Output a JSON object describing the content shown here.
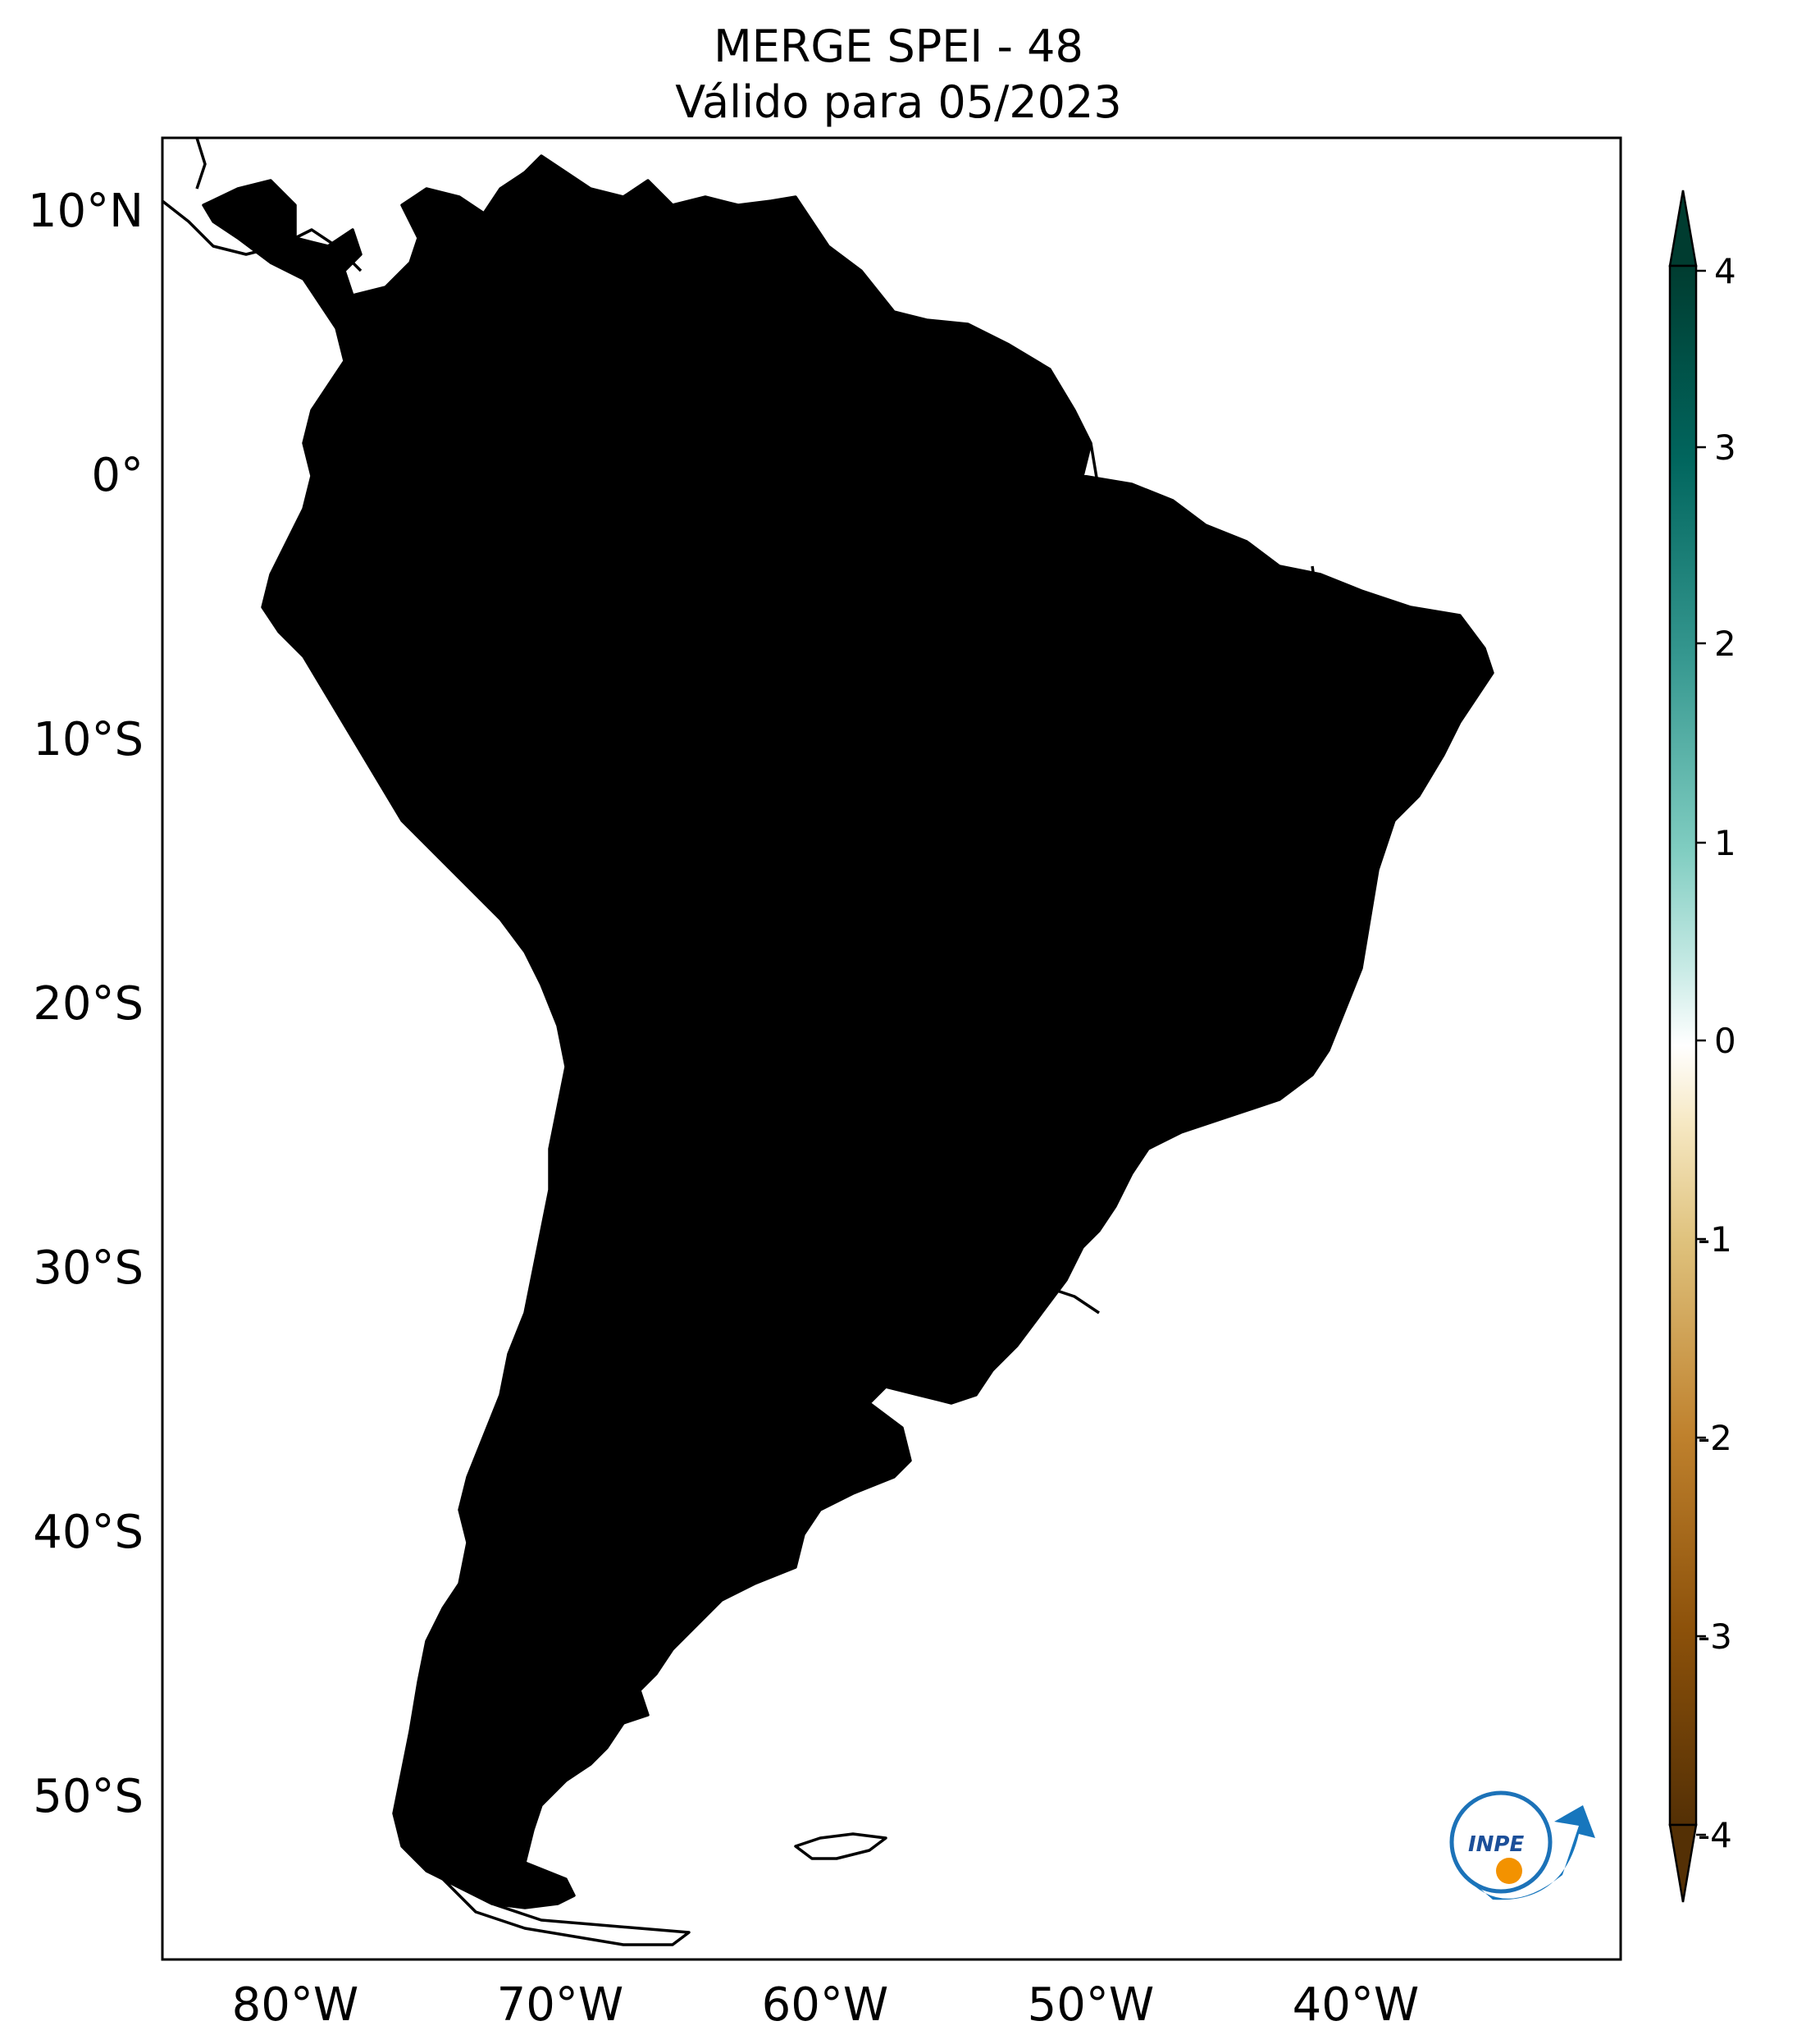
{
  "title": {
    "line1": "MERGE   SPEI - 48",
    "line2": "Válido para 05/2023"
  },
  "axes": {
    "lat_ticks": [
      "10°N",
      "0°",
      "10°S",
      "20°S",
      "30°S",
      "40°S",
      "50°S"
    ],
    "lon_ticks": [
      "80°W",
      "70°W",
      "60°W",
      "50°W",
      "40°W"
    ],
    "lon_range": [
      -85,
      -30
    ],
    "lat_range": [
      -56,
      12.5
    ]
  },
  "colorbar": {
    "ticks": [
      "4",
      "3",
      "2",
      "1",
      "0",
      "-1",
      "-2",
      "-3",
      "-4"
    ],
    "min": -4,
    "max": 4,
    "extend": "both",
    "colormap": "BrBG",
    "colors": {
      "dry_extreme": "#543005",
      "dry": "#bf812d",
      "dry_light": "#f6e8c3",
      "neutral": "#ffffff",
      "wet_light": "#c7eae5",
      "wet": "#35978f",
      "wet_extreme": "#003c30"
    }
  },
  "logo": {
    "text": "INPE"
  }
}
